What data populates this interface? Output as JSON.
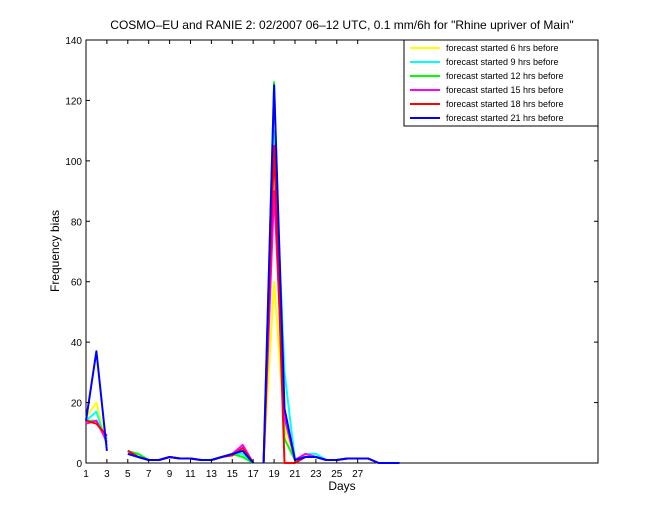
{
  "chart_data": {
    "type": "line",
    "title": "COSMO–EU and RANIE 2: 02/2007 06–12 UTC, 0.1 mm/6h for \"Rhine upriver of Main\"",
    "xlabel": "Days",
    "ylabel": "Frequency bias",
    "xlim": [
      1,
      50
    ],
    "ylim": [
      0,
      140
    ],
    "xticks": [
      1,
      3,
      5,
      7,
      9,
      11,
      13,
      15,
      17,
      19,
      21,
      23,
      25,
      27
    ],
    "yticks": [
      0,
      20,
      40,
      60,
      80,
      100,
      120,
      140
    ],
    "legend_position": "top-right",
    "grid": false,
    "series": [
      {
        "name": "forecast started 6 hrs before",
        "color": "#ffff00",
        "points": [
          [
            1,
            15
          ],
          [
            2,
            20
          ],
          [
            3,
            6
          ],
          [
            null,
            null
          ],
          [
            5,
            3
          ],
          [
            6,
            3
          ],
          [
            7,
            1
          ],
          [
            8,
            1
          ],
          [
            9,
            2
          ],
          [
            10,
            1.5
          ],
          [
            11,
            1.5
          ],
          [
            12,
            1
          ],
          [
            13,
            1
          ],
          [
            14,
            2
          ],
          [
            15,
            3
          ],
          [
            16,
            4
          ],
          [
            17,
            0
          ],
          [
            null,
            null
          ],
          [
            18,
            0
          ],
          [
            19,
            60
          ],
          [
            20,
            12
          ],
          [
            21,
            1
          ],
          [
            22,
            3
          ],
          [
            23,
            2
          ],
          [
            24,
            1
          ],
          [
            25,
            1
          ],
          [
            26,
            1.5
          ],
          [
            27,
            1.5
          ],
          [
            28,
            1.5
          ],
          [
            29,
            0
          ],
          [
            30,
            0
          ],
          [
            31,
            0
          ]
        ]
      },
      {
        "name": "forecast started 9 hrs before",
        "color": "#00ffff",
        "points": [
          [
            1,
            14
          ],
          [
            2,
            17
          ],
          [
            3,
            6
          ],
          [
            null,
            null
          ],
          [
            5,
            3
          ],
          [
            6,
            3
          ],
          [
            7,
            1
          ],
          [
            8,
            1
          ],
          [
            9,
            2
          ],
          [
            10,
            1.5
          ],
          [
            11,
            1.5
          ],
          [
            12,
            1
          ],
          [
            13,
            1
          ],
          [
            14,
            2
          ],
          [
            15,
            3
          ],
          [
            16,
            3
          ],
          [
            17,
            0
          ],
          [
            null,
            null
          ],
          [
            18,
            0
          ],
          [
            19,
            110
          ],
          [
            20,
            30
          ],
          [
            21,
            1
          ],
          [
            22,
            3
          ],
          [
            23,
            3
          ],
          [
            24,
            1
          ],
          [
            25,
            1
          ],
          [
            26,
            1.5
          ],
          [
            27,
            1.5
          ],
          [
            28,
            1.5
          ],
          [
            29,
            0
          ],
          [
            30,
            0
          ],
          [
            31,
            0
          ]
        ]
      },
      {
        "name": "forecast started 12 hrs before",
        "color": "#00ff00",
        "points": [
          [
            1,
            14
          ],
          [
            2,
            14
          ],
          [
            3,
            8
          ],
          [
            null,
            null
          ],
          [
            5,
            4
          ],
          [
            6,
            3
          ],
          [
            7,
            1
          ],
          [
            8,
            1
          ],
          [
            9,
            2
          ],
          [
            10,
            1.5
          ],
          [
            11,
            1.5
          ],
          [
            12,
            1
          ],
          [
            13,
            1
          ],
          [
            14,
            2
          ],
          [
            15,
            3
          ],
          [
            16,
            2
          ],
          [
            17,
            0
          ],
          [
            null,
            null
          ],
          [
            18,
            0
          ],
          [
            19,
            126
          ],
          [
            20,
            8
          ],
          [
            21,
            1
          ],
          [
            22,
            3
          ],
          [
            23,
            2
          ],
          [
            24,
            1
          ],
          [
            25,
            1
          ],
          [
            26,
            1.5
          ],
          [
            27,
            1.5
          ],
          [
            28,
            1.5
          ],
          [
            29,
            0
          ],
          [
            30,
            0
          ],
          [
            31,
            0
          ]
        ]
      },
      {
        "name": "forecast started 15 hrs before",
        "color": "#ff00ff",
        "points": [
          [
            1,
            13
          ],
          [
            2,
            14
          ],
          [
            3,
            7
          ],
          [
            null,
            null
          ],
          [
            5,
            4
          ],
          [
            6,
            2
          ],
          [
            7,
            1
          ],
          [
            8,
            1
          ],
          [
            9,
            2
          ],
          [
            10,
            1.5
          ],
          [
            11,
            1.5
          ],
          [
            12,
            1
          ],
          [
            13,
            1
          ],
          [
            14,
            2
          ],
          [
            15,
            3
          ],
          [
            16,
            6
          ],
          [
            17,
            0
          ],
          [
            null,
            null
          ],
          [
            18,
            0
          ],
          [
            19,
            90
          ],
          [
            20,
            15
          ],
          [
            21,
            1
          ],
          [
            22,
            3
          ],
          [
            23,
            2
          ],
          [
            24,
            1
          ],
          [
            25,
            1
          ],
          [
            26,
            1.5
          ],
          [
            27,
            1.5
          ],
          [
            28,
            1.5
          ],
          [
            29,
            0
          ],
          [
            30,
            0
          ],
          [
            31,
            0
          ]
        ]
      },
      {
        "name": "forecast started 18 hrs before",
        "color": "#ff0000",
        "points": [
          [
            1,
            14
          ],
          [
            2,
            13
          ],
          [
            3,
            9
          ],
          [
            null,
            null
          ],
          [
            5,
            4
          ],
          [
            6,
            2
          ],
          [
            7,
            1
          ],
          [
            8,
            1
          ],
          [
            9,
            2
          ],
          [
            10,
            1.5
          ],
          [
            11,
            1.5
          ],
          [
            12,
            1
          ],
          [
            13,
            1
          ],
          [
            14,
            2
          ],
          [
            15,
            2.5
          ],
          [
            16,
            5
          ],
          [
            17,
            0
          ],
          [
            null,
            null
          ],
          [
            18,
            0
          ],
          [
            19,
            105
          ],
          [
            20,
            0
          ],
          [
            21,
            0
          ],
          [
            22,
            2
          ],
          [
            23,
            2
          ],
          [
            24,
            1
          ],
          [
            25,
            1
          ],
          [
            26,
            1.5
          ],
          [
            27,
            1.5
          ],
          [
            28,
            1.5
          ],
          [
            29,
            0
          ],
          [
            30,
            0
          ],
          [
            31,
            0
          ]
        ]
      },
      {
        "name": "forecast started 21 hrs before",
        "color": "#0000ff",
        "points": [
          [
            1,
            14
          ],
          [
            2,
            37
          ],
          [
            3,
            4
          ],
          [
            null,
            null
          ],
          [
            5,
            3
          ],
          [
            6,
            2
          ],
          [
            7,
            1
          ],
          [
            8,
            1
          ],
          [
            9,
            2
          ],
          [
            10,
            1.5
          ],
          [
            11,
            1.5
          ],
          [
            12,
            1
          ],
          [
            13,
            1
          ],
          [
            14,
            2
          ],
          [
            15,
            3
          ],
          [
            16,
            4
          ],
          [
            17,
            0
          ],
          [
            null,
            null
          ],
          [
            18,
            0
          ],
          [
            19,
            125
          ],
          [
            20,
            18
          ],
          [
            21,
            1
          ],
          [
            22,
            2
          ],
          [
            23,
            2
          ],
          [
            24,
            1
          ],
          [
            25,
            1
          ],
          [
            26,
            1.5
          ],
          [
            27,
            1.5
          ],
          [
            28,
            1.5
          ],
          [
            29,
            0
          ],
          [
            30,
            0
          ],
          [
            31,
            0
          ]
        ]
      }
    ]
  }
}
